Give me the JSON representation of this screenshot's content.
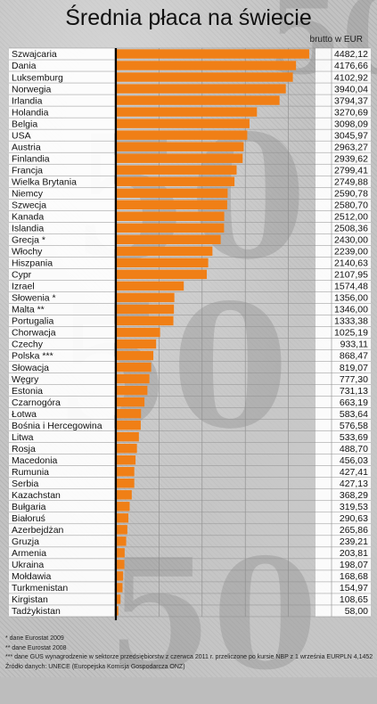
{
  "chart_data": {
    "type": "bar",
    "orientation": "horizontal",
    "title": "Średnia płaca na świecie",
    "unit_label": "brutto w EUR",
    "xlim": [
      0,
      5000
    ],
    "xticks": [
      "0",
      "1000",
      "2000",
      "3000",
      "4000",
      "5000"
    ],
    "grid": true,
    "bar_color": "#f07f16",
    "categories": [
      "Szwajcaria",
      "Dania",
      "Luksemburg",
      "Norwegia",
      "Irlandia",
      "Holandia",
      "Belgia",
      "USA",
      "Austria",
      "Finlandia",
      "Francja",
      "Wielka Brytania",
      "Niemcy",
      "Szwecja",
      "Kanada",
      "Islandia",
      "Grecja *",
      "Włochy",
      "Hiszpania",
      "Cypr",
      "Izrael",
      "Słowenia *",
      "Malta **",
      "Portugalia",
      "Chorwacja",
      "Czechy",
      "Polska ***",
      "Słowacja",
      "Węgry",
      "Estonia",
      "Czarnogóra",
      "Łotwa",
      "Bośnia i Hercegowina",
      "Litwa",
      "Rosja",
      "Macedonia",
      "Rumunia",
      "Serbia",
      "Kazachstan",
      "Bułgaria",
      "Białoruś",
      "Azerbejdżan",
      "Gruzja",
      "Armenia",
      "Ukraina",
      "Mołdawia",
      "Turkmenistan",
      "Kirgistan",
      "Tadżykistan"
    ],
    "values": [
      4482.12,
      4176.66,
      4102.92,
      3940.04,
      3794.37,
      3270.69,
      3098.09,
      3045.97,
      2963.27,
      2939.62,
      2799.41,
      2749.88,
      2590.78,
      2580.7,
      2512.0,
      2508.36,
      2430.0,
      2239.0,
      2140.63,
      2107.95,
      1574.48,
      1356.0,
      1346.0,
      1333.38,
      1025.19,
      933.11,
      868.47,
      819.07,
      777.3,
      731.13,
      663.19,
      583.64,
      576.58,
      533.69,
      488.7,
      456.03,
      427.41,
      427.13,
      368.29,
      319.53,
      290.63,
      265.86,
      239.21,
      203.81,
      198.07,
      168.68,
      154.97,
      108.65,
      58.0
    ],
    "value_labels": [
      "4482,12",
      "4176,66",
      "4102,92",
      "3940,04",
      "3794,37",
      "3270,69",
      "3098,09",
      "3045,97",
      "2963,27",
      "2939,62",
      "2799,41",
      "2749,88",
      "2590,78",
      "2580,70",
      "2512,00",
      "2508,36",
      "2430,00",
      "2239,00",
      "2140,63",
      "2107,95",
      "1574,48",
      "1356,00",
      "1346,00",
      "1333,38",
      "1025,19",
      "933,11",
      "868,47",
      "819,07",
      "777,30",
      "731,13",
      "663,19",
      "583,64",
      "576,58",
      "533,69",
      "488,70",
      "456,03",
      "427,41",
      "427,13",
      "368,29",
      "319,53",
      "290,63",
      "265,86",
      "239,21",
      "203,81",
      "198,07",
      "168,68",
      "154,97",
      "108,65",
      "58,00"
    ]
  },
  "notes": [
    "* dane Eurostat 2009",
    "** dane Eurostat 2008",
    "*** dane GUS wynagrodzenie w sektorze przedsiębiorstw z czerwca 2011 r. przeliczone po kursie NBP z 1 września EURPLN 4,1452",
    "Źródło danych: UNECE (Europejska Komisja Gospodarcza ONZ)"
  ]
}
